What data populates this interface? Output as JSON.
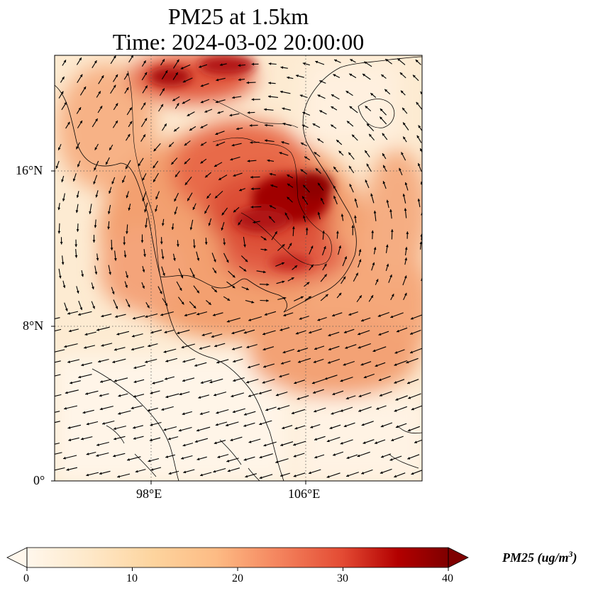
{
  "title": {
    "line1": "PM25 at 1.5km",
    "line2": "Time: 2024-03-02 20:00:00"
  },
  "map": {
    "projection": "PlateCarree",
    "lon_range_deg": [
      93,
      112
    ],
    "lat_range_deg": [
      0,
      22
    ],
    "lat_ticks": [
      "16°N",
      "8°N",
      "0°"
    ],
    "lon_ticks": [
      "98°E",
      "106°E"
    ],
    "gridlines": "dotted",
    "coastlines": true,
    "wind_vectors": true,
    "field": "PM2.5 concentration, highest (~35-40) over northeast Thailand / Laos / Cambodia, moderate (~15-25) over Thailand, Vietnam and South China Sea, low (~0-8) over Malaysia and southwest"
  },
  "colorbar": {
    "colormap": "OrRd",
    "orientation": "horizontal",
    "extend": "both",
    "min": 0,
    "max": 40,
    "ticks": [
      "0",
      "10",
      "20",
      "30",
      "40"
    ],
    "label": "PM25 (ug/m",
    "label_exponent": "3",
    "label_close": ")"
  }
}
